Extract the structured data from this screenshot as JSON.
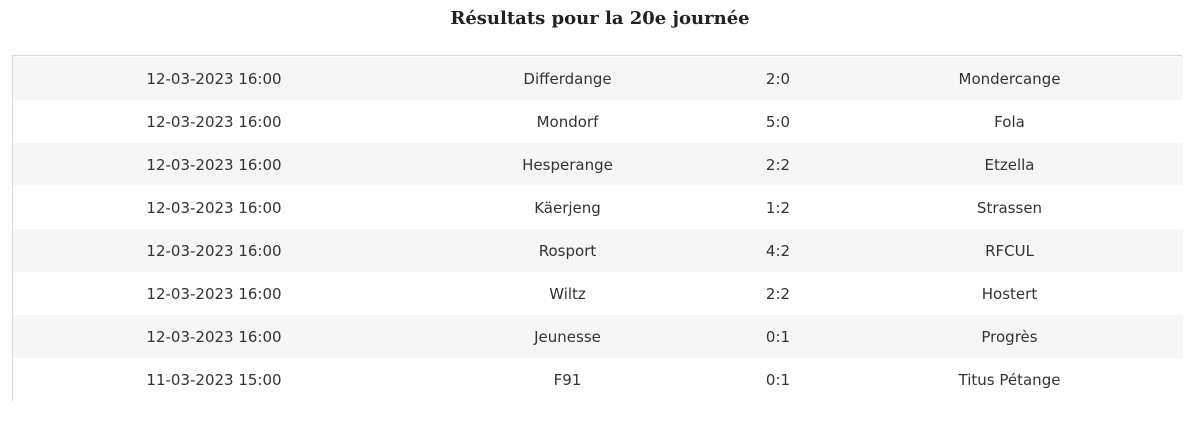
{
  "title": "Résultats pour la 20e journée",
  "matches": [
    {
      "datetime": "12-03-2023 16:00",
      "home": "Differdange",
      "score": "2:0",
      "away": "Mondercange"
    },
    {
      "datetime": "12-03-2023 16:00",
      "home": "Mondorf",
      "score": "5:0",
      "away": "Fola"
    },
    {
      "datetime": "12-03-2023 16:00",
      "home": "Hesperange",
      "score": "2:2",
      "away": "Etzella"
    },
    {
      "datetime": "12-03-2023 16:00",
      "home": "Käerjeng",
      "score": "1:2",
      "away": "Strassen"
    },
    {
      "datetime": "12-03-2023 16:00",
      "home": "Rosport",
      "score": "4:2",
      "away": "RFCUL"
    },
    {
      "datetime": "12-03-2023 16:00",
      "home": "Wiltz",
      "score": "2:2",
      "away": "Hostert"
    },
    {
      "datetime": "12-03-2023 16:00",
      "home": "Jeunesse",
      "score": "0:1",
      "away": "Progrès"
    },
    {
      "datetime": "11-03-2023 15:00",
      "home": "F91",
      "score": "0:1",
      "away": "Titus Pétange"
    }
  ]
}
